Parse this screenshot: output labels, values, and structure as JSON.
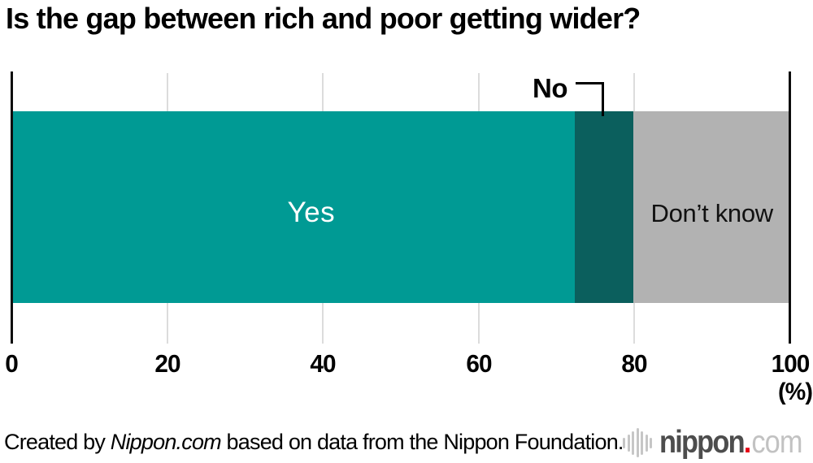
{
  "title": "Is the gap between rich and poor getting wider?",
  "chart_data": {
    "type": "bar",
    "orientation": "horizontal-stacked",
    "title": "Is the gap between rich and poor getting wider?",
    "categories": [
      "Yes",
      "No",
      "Don’t know"
    ],
    "values": [
      72.3,
      7.6,
      20.1
    ],
    "colors": [
      "#009a94",
      "#0b5f5d",
      "#b2b2b2"
    ],
    "xlabel": "(%)",
    "xlim": [
      0,
      100
    ],
    "tick_labels": [
      "0",
      "20",
      "40",
      "60",
      "80",
      "100"
    ],
    "grid": "vertical gridlines at 20/40/60/80, black axis lines at 0 and 100",
    "legend": "labels drawn on/above segments"
  },
  "segment_labels": {
    "yes": "Yes",
    "no": "No",
    "dont_know": "Don’t know"
  },
  "axis": {
    "unit_label": "(%)"
  },
  "footer": {
    "credit_prefix": "Created by ",
    "credit_source": "Nippon.com",
    "credit_suffix": " based on data from the Nippon Foundation.",
    "logo": {
      "name": "nippon.com",
      "text_bold": "nippon",
      "dot": ".",
      "text_light": "com",
      "icon": "waveform-icon",
      "accent_red": "#e60012"
    }
  }
}
